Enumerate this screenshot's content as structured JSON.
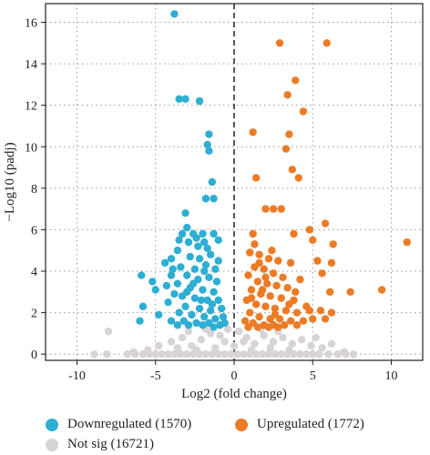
{
  "colors": {
    "down": "#2eaed3",
    "up": "#ec7b26",
    "ns": "#d8d3d4",
    "grid": "#9a9a9a",
    "axis": "#222222"
  },
  "legend": {
    "down_label": "Downregulated (1570)",
    "up_label": "Upregulated (1772)",
    "ns_label": "Not sig (16721)"
  },
  "chart_data": {
    "type": "scatter",
    "xlabel": "Log2 (fold change)",
    "ylabel": "−Log10 (padj)",
    "xlim": [
      -12,
      12
    ],
    "ylim": [
      -0.3,
      16.9
    ],
    "xticks": [
      -10,
      -5,
      0,
      5,
      10
    ],
    "yticks": [
      0,
      2,
      4,
      6,
      8,
      10,
      12,
      14,
      16
    ],
    "grid": "dotted",
    "threshold_x": 0,
    "legend_position": "bottom",
    "series": [
      {
        "name": "Downregulated (1570)",
        "points": [
          [
            -3.8,
            16.4
          ],
          [
            -3.5,
            12.3
          ],
          [
            -3.1,
            12.3
          ],
          [
            -2.2,
            12.2
          ],
          [
            -1.6,
            10.6
          ],
          [
            -1.7,
            10.1
          ],
          [
            -1.6,
            9.8
          ],
          [
            -1.4,
            8.3
          ],
          [
            -1.8,
            7.5
          ],
          [
            -1.3,
            7.5
          ],
          [
            -3.1,
            6.8
          ],
          [
            -3.5,
            5.5
          ],
          [
            -4.4,
            4.4
          ],
          [
            -3.0,
            6.1
          ],
          [
            -5.9,
            3.8
          ],
          [
            -5.2,
            3.5
          ],
          [
            -4.3,
            3.3
          ],
          [
            -5.0,
            3.1
          ],
          [
            -5.8,
            2.3
          ],
          [
            -4.8,
            1.9
          ],
          [
            -6.0,
            1.6
          ],
          [
            -3.3,
            5.8
          ],
          [
            -2.6,
            5.8
          ],
          [
            -2.0,
            5.8
          ],
          [
            -1.3,
            5.8
          ],
          [
            -1.0,
            5.5
          ],
          [
            -2.9,
            5.4
          ],
          [
            -2.3,
            5.2
          ],
          [
            -1.7,
            5.1
          ],
          [
            -3.6,
            5.0
          ],
          [
            -4.0,
            4.6
          ],
          [
            -2.8,
            4.7
          ],
          [
            -2.2,
            4.6
          ],
          [
            -1.5,
            4.8
          ],
          [
            -1.0,
            4.5
          ],
          [
            -3.4,
            4.2
          ],
          [
            -2.5,
            4.1
          ],
          [
            -1.9,
            4.0
          ],
          [
            -1.2,
            4.1
          ],
          [
            -4.0,
            3.8
          ],
          [
            -3.0,
            3.8
          ],
          [
            -2.3,
            3.6
          ],
          [
            -1.6,
            3.7
          ],
          [
            -1.1,
            3.5
          ],
          [
            -3.6,
            3.4
          ],
          [
            -2.8,
            3.2
          ],
          [
            -2.0,
            3.1
          ],
          [
            -1.3,
            3.0
          ],
          [
            -3.3,
            2.8
          ],
          [
            -2.5,
            2.7
          ],
          [
            -1.7,
            2.6
          ],
          [
            -1.0,
            2.6
          ],
          [
            -4.2,
            2.5
          ],
          [
            -3.8,
            2.9
          ],
          [
            -3.1,
            2.3
          ],
          [
            -2.2,
            2.2
          ],
          [
            -1.5,
            2.1
          ],
          [
            -0.8,
            2.2
          ],
          [
            -3.5,
            2.0
          ],
          [
            -2.7,
            1.9
          ],
          [
            -1.9,
            1.8
          ],
          [
            -1.2,
            1.7
          ],
          [
            -0.7,
            1.8
          ],
          [
            -4.0,
            1.6
          ],
          [
            -3.2,
            1.6
          ],
          [
            -2.4,
            1.5
          ],
          [
            -1.6,
            1.5
          ],
          [
            -0.9,
            1.4
          ],
          [
            -3.6,
            1.4
          ],
          [
            -2.9,
            1.4
          ],
          [
            -2.0,
            1.4
          ],
          [
            -1.3,
            1.3
          ],
          [
            -0.6,
            1.5
          ],
          [
            -2.6,
            3.4
          ],
          [
            -1.8,
            4.3
          ],
          [
            -2.1,
            2.6
          ],
          [
            -1.4,
            2.4
          ],
          [
            -3.0,
            3.0
          ],
          [
            -2.4,
            5.6
          ],
          [
            -1.9,
            5.4
          ],
          [
            -3.9,
            4.1
          ]
        ]
      },
      {
        "name": "Upregulated (1772)",
        "points": [
          [
            2.9,
            15.0
          ],
          [
            5.9,
            15.0
          ],
          [
            3.9,
            13.2
          ],
          [
            3.4,
            12.5
          ],
          [
            4.4,
            11.7
          ],
          [
            1.2,
            10.7
          ],
          [
            3.3,
            9.9
          ],
          [
            3.5,
            10.6
          ],
          [
            3.7,
            8.9
          ],
          [
            1.4,
            8.5
          ],
          [
            4.1,
            8.5
          ],
          [
            2.0,
            7.0
          ],
          [
            2.5,
            7.0
          ],
          [
            3.0,
            7.0
          ],
          [
            5.8,
            6.3
          ],
          [
            4.8,
            6.0
          ],
          [
            1.2,
            5.8
          ],
          [
            3.8,
            5.8
          ],
          [
            11.0,
            5.4
          ],
          [
            5.0,
            5.5
          ],
          [
            6.3,
            5.3
          ],
          [
            5.3,
            4.5
          ],
          [
            6.2,
            4.4
          ],
          [
            5.6,
            3.9
          ],
          [
            9.4,
            3.1
          ],
          [
            6.1,
            3.0
          ],
          [
            7.4,
            3.0
          ],
          [
            5.5,
            2.1
          ],
          [
            6.2,
            2.0
          ],
          [
            5.8,
            1.7
          ],
          [
            4.6,
            2.3
          ],
          [
            4.2,
            3.6
          ],
          [
            3.6,
            4.4
          ],
          [
            1.0,
            4.9
          ],
          [
            1.6,
            4.8
          ],
          [
            2.2,
            4.6
          ],
          [
            2.8,
            4.5
          ],
          [
            1.3,
            4.2
          ],
          [
            1.9,
            4.1
          ],
          [
            2.5,
            3.9
          ],
          [
            3.1,
            3.7
          ],
          [
            0.9,
            3.8
          ],
          [
            1.5,
            3.5
          ],
          [
            2.1,
            3.4
          ],
          [
            2.7,
            3.3
          ],
          [
            3.4,
            3.2
          ],
          [
            1.1,
            3.1
          ],
          [
            1.7,
            2.9
          ],
          [
            2.3,
            2.8
          ],
          [
            3.0,
            2.7
          ],
          [
            3.8,
            2.6
          ],
          [
            0.8,
            2.6
          ],
          [
            1.4,
            2.4
          ],
          [
            2.0,
            2.3
          ],
          [
            2.6,
            2.2
          ],
          [
            3.3,
            2.1
          ],
          [
            4.0,
            2.0
          ],
          [
            1.0,
            2.0
          ],
          [
            1.6,
            1.8
          ],
          [
            2.3,
            1.7
          ],
          [
            2.9,
            1.7
          ],
          [
            3.6,
            1.6
          ],
          [
            4.4,
            1.6
          ],
          [
            0.7,
            1.6
          ],
          [
            1.2,
            1.5
          ],
          [
            1.9,
            1.4
          ],
          [
            2.5,
            1.4
          ],
          [
            3.2,
            1.4
          ],
          [
            4.0,
            1.4
          ],
          [
            0.9,
            1.3
          ],
          [
            1.5,
            1.3
          ],
          [
            2.2,
            1.3
          ],
          [
            2.8,
            1.3
          ],
          [
            5.0,
            1.7
          ],
          [
            3.5,
            2.4
          ],
          [
            1.3,
            5.3
          ],
          [
            2.4,
            5.0
          ],
          [
            1.8,
            3.1
          ],
          [
            2.6,
            1.9
          ],
          [
            4.8,
            2.1
          ],
          [
            1.1,
            2.7
          ],
          [
            3.9,
            3.0
          ],
          [
            1.6,
            4.4
          ],
          [
            2.0,
            3.7
          ]
        ]
      },
      {
        "name": "Not sig (16721)",
        "points": [
          [
            -8.9,
            0.0
          ],
          [
            -8.1,
            0.0
          ],
          [
            -6.8,
            0.0
          ],
          [
            -6.3,
            0.0
          ],
          [
            -5.8,
            0.0
          ],
          [
            -5.4,
            0.0
          ],
          [
            -5.0,
            0.0
          ],
          [
            -4.6,
            0.0
          ],
          [
            -4.2,
            0.0
          ],
          [
            -3.8,
            0.0
          ],
          [
            -3.4,
            0.0
          ],
          [
            -3.0,
            0.0
          ],
          [
            -2.6,
            0.0
          ],
          [
            -2.2,
            0.0
          ],
          [
            -1.8,
            0.0
          ],
          [
            -1.4,
            0.0
          ],
          [
            -1.0,
            0.0
          ],
          [
            -0.6,
            0.0
          ],
          [
            -0.2,
            0.0
          ],
          [
            0.2,
            0.0
          ],
          [
            0.6,
            0.0
          ],
          [
            1.0,
            0.0
          ],
          [
            1.4,
            0.0
          ],
          [
            1.8,
            0.0
          ],
          [
            2.2,
            0.0
          ],
          [
            2.6,
            0.0
          ],
          [
            3.0,
            0.0
          ],
          [
            3.4,
            0.0
          ],
          [
            3.8,
            0.0
          ],
          [
            4.2,
            0.0
          ],
          [
            4.6,
            0.0
          ],
          [
            5.0,
            0.0
          ],
          [
            5.4,
            0.0
          ],
          [
            6.0,
            0.0
          ],
          [
            6.6,
            0.0
          ],
          [
            7.1,
            0.0
          ],
          [
            7.6,
            0.0
          ],
          [
            -8.0,
            1.1
          ],
          [
            -4.8,
            0.4
          ],
          [
            -4.0,
            0.6
          ],
          [
            -3.3,
            0.8
          ],
          [
            -2.7,
            0.4
          ],
          [
            -2.1,
            0.7
          ],
          [
            -1.5,
            1.0
          ],
          [
            -0.9,
            0.9
          ],
          [
            -0.4,
            1.2
          ],
          [
            0.3,
            1.1
          ],
          [
            0.8,
            0.8
          ],
          [
            1.3,
            0.5
          ],
          [
            1.9,
            0.9
          ],
          [
            2.5,
            0.6
          ],
          [
            3.1,
            0.8
          ],
          [
            3.7,
            0.5
          ],
          [
            4.3,
            0.7
          ],
          [
            4.9,
            0.4
          ],
          [
            5.6,
            0.3
          ],
          [
            6.2,
            0.5
          ],
          [
            -3.6,
            0.3
          ],
          [
            -2.4,
            0.2
          ],
          [
            -1.2,
            0.3
          ],
          [
            0.0,
            0.4
          ],
          [
            1.1,
            0.2
          ],
          [
            2.3,
            0.3
          ],
          [
            3.5,
            0.2
          ],
          [
            -0.6,
            0.6
          ],
          [
            0.6,
            0.6
          ],
          [
            -1.8,
            1.2
          ],
          [
            1.7,
            1.2
          ],
          [
            -2.9,
            1.1
          ],
          [
            2.8,
            1.1
          ],
          [
            -5.5,
            0.2
          ],
          [
            5.2,
            0.8
          ],
          [
            -6.4,
            0.1
          ],
          [
            7.0,
            0.1
          ]
        ]
      }
    ]
  }
}
